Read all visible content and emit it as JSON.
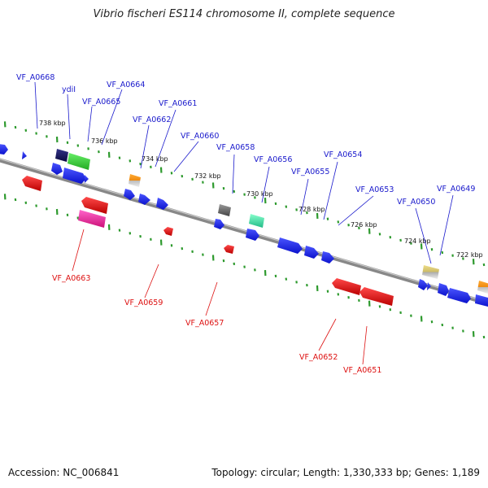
{
  "title": "Vibrio fischeri ES114 chromosome II, complete sequence",
  "footer": {
    "accession": "Accession: NC_006841",
    "summary": "Topology: circular; Length: 1,330,333 bp; Genes: 1,189"
  },
  "colors": {
    "backbone": "#7a7a7a",
    "tick": "#2e9a2e",
    "forward_label": "#1a1acc",
    "reverse_label": "#dd1111",
    "gene_blue": "#1520ee",
    "gene_red": "#ee1111",
    "gene_green": "#33cc33",
    "gene_navy": "#151560",
    "gene_orange": "#ee8a10",
    "gene_gray": "#6a6a6a",
    "gene_teal": "#33ddaa",
    "gene_pink": "#ee2299",
    "gene_khaki": "#ddcc77"
  },
  "kbp_ticks": [
    {
      "label": "738 kbp"
    },
    {
      "label": "736 kbp"
    },
    {
      "label": "734 kbp"
    },
    {
      "label": "732 kbp"
    },
    {
      "label": "730 kbp"
    },
    {
      "label": "728 kbp"
    },
    {
      "label": "726 kbp"
    },
    {
      "label": "724 kbp"
    },
    {
      "label": "722 kbp"
    }
  ],
  "forward_labels": [
    {
      "text": "VF_A0668"
    },
    {
      "text": "ydiI"
    },
    {
      "text": "VF_A0664"
    },
    {
      "text": "VF_A0665"
    },
    {
      "text": "VF_A0661"
    },
    {
      "text": "VF_A0662"
    },
    {
      "text": "VF_A0660"
    },
    {
      "text": "VF_A0658"
    },
    {
      "text": "VF_A0656"
    },
    {
      "text": "VF_A0654"
    },
    {
      "text": "VF_A0655"
    },
    {
      "text": "VF_A0653"
    },
    {
      "text": "VF_A0650"
    },
    {
      "text": "VF_A0649"
    }
  ],
  "reverse_labels": [
    {
      "text": "VF_A0663"
    },
    {
      "text": "VF_A0659"
    },
    {
      "text": "VF_A0657"
    },
    {
      "text": "VF_A0652"
    },
    {
      "text": "VF_A0651"
    }
  ]
}
